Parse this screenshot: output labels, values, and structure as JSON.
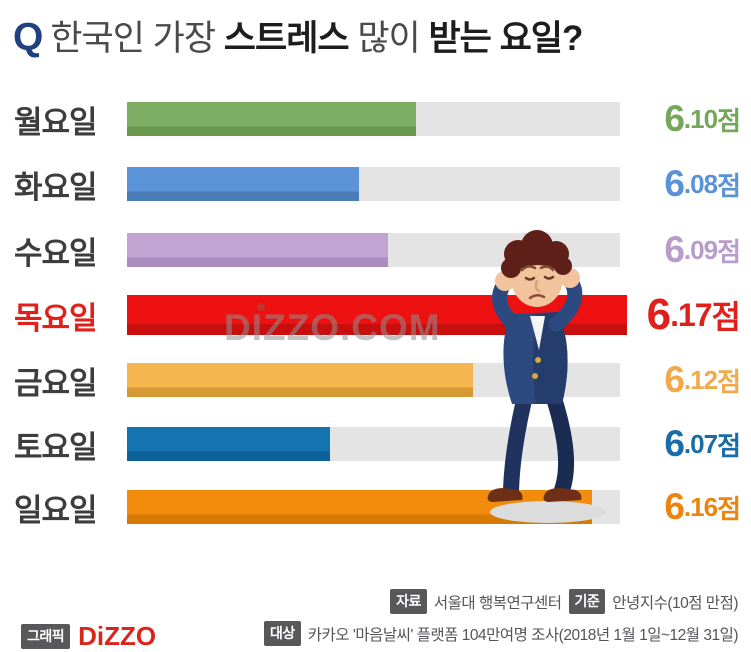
{
  "title": {
    "prefix": "Q",
    "segments": [
      {
        "text": "한국인 가장 ",
        "bold": false
      },
      {
        "text": "스트레스",
        "bold": true
      },
      {
        "text": " 많이 ",
        "bold": false
      },
      {
        "text": "받는 요일?",
        "bold": true
      }
    ]
  },
  "chart_data": {
    "type": "bar",
    "orientation": "horizontal",
    "title": "한국인 가장 스트레스 많이 받는 요일?",
    "unit": "점",
    "score_max": 10,
    "categories": [
      "월요일",
      "화요일",
      "수요일",
      "목요일",
      "금요일",
      "토요일",
      "일요일"
    ],
    "values": [
      6.1,
      6.08,
      6.09,
      6.17,
      6.12,
      6.07,
      6.16
    ],
    "highlight_index": 3,
    "track_color": "#e4e4e4",
    "rows": [
      {
        "label": "월요일",
        "value": 6.1,
        "fill_percent": 58.6,
        "color": "#7dad62",
        "color_dark": "#68994e",
        "value_color": "#74a75b",
        "label_color": "#3d3d3d",
        "highlight": false
      },
      {
        "label": "화요일",
        "value": 6.08,
        "fill_percent": 47.1,
        "color": "#5b94d9",
        "color_dark": "#4a7cb8",
        "value_color": "#5b92d6",
        "label_color": "#3d3d3d",
        "highlight": false
      },
      {
        "label": "수요일",
        "value": 6.09,
        "fill_percent": 53.0,
        "color": "#c2a3d1",
        "color_dark": "#aa8cbe",
        "value_color": "#b89ccb",
        "label_color": "#3d3d3d",
        "highlight": false
      },
      {
        "label": "목요일",
        "value": 6.17,
        "fill_percent": 101.4,
        "color": "#ee1111",
        "color_dark": "#c90e0e",
        "value_color": "#e0201a",
        "label_color": "#e0201a",
        "highlight": true
      },
      {
        "label": "금요일",
        "value": 6.12,
        "fill_percent": 70.2,
        "color": "#f5b54f",
        "color_dark": "#d59a36",
        "value_color": "#f1a94b",
        "label_color": "#3d3d3d",
        "highlight": false
      },
      {
        "label": "토요일",
        "value": 6.07,
        "fill_percent": 41.2,
        "color": "#1474b0",
        "color_dark": "#0f619a",
        "value_color": "#1a6ca7",
        "label_color": "#3d3d3d",
        "highlight": false
      },
      {
        "label": "일요일",
        "value": 6.16,
        "fill_percent": 94.3,
        "color": "#f28c0d",
        "color_dark": "#d67a05",
        "value_color": "#ec850e",
        "label_color": "#3d3d3d",
        "highlight": false
      }
    ]
  },
  "watermark": "DIZZO.COM",
  "illustration": "stressed-man-covering-ears",
  "footer": {
    "source_badge": "자료",
    "source_text": "서울대 행복연구센터",
    "standard_badge": "기준",
    "standard_text": "안녕지수(10점 만점)",
    "target_badge": "대상",
    "target_text": "카카오 '마음날씨' 플랫폼 104만여명 조사(2018년 1월 1일~12월 31일)",
    "graphic_badge": "그래픽",
    "logo_text": "DiZZO"
  }
}
